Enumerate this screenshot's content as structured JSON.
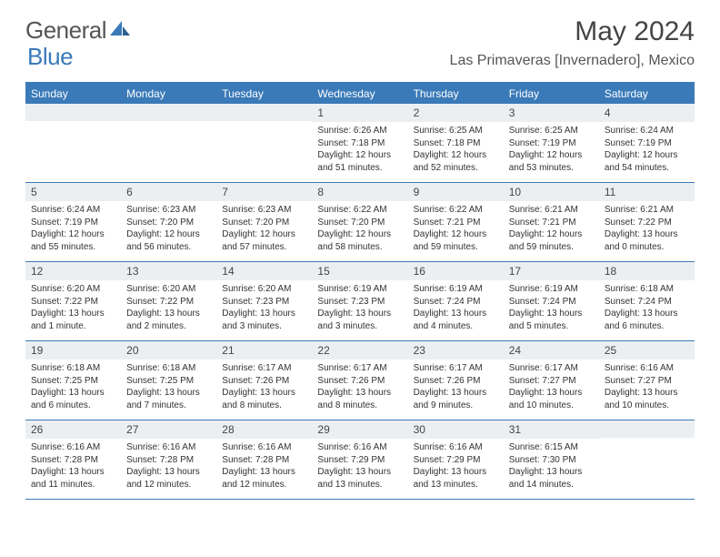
{
  "logo": {
    "text1": "General",
    "text2": "Blue"
  },
  "title": "May 2024",
  "location": "Las Primaveras [Invernadero], Mexico",
  "colors": {
    "header_bg": "#3a7ab8",
    "header_text": "#ffffff",
    "daynum_bg": "#eceff1",
    "text": "#333333",
    "border": "#3a7ab8",
    "logo_gray": "#555555",
    "logo_blue": "#3a7ab8",
    "background": "#ffffff"
  },
  "typography": {
    "title_fontsize": 30,
    "location_fontsize": 16,
    "dayheader_fontsize": 12,
    "daynum_fontsize": 12,
    "info_fontsize": 10
  },
  "day_names": [
    "Sunday",
    "Monday",
    "Tuesday",
    "Wednesday",
    "Thursday",
    "Friday",
    "Saturday"
  ],
  "weeks": [
    [
      {
        "n": "",
        "sr": "",
        "ss": "",
        "dl": ""
      },
      {
        "n": "",
        "sr": "",
        "ss": "",
        "dl": ""
      },
      {
        "n": "",
        "sr": "",
        "ss": "",
        "dl": ""
      },
      {
        "n": "1",
        "sr": "Sunrise: 6:26 AM",
        "ss": "Sunset: 7:18 PM",
        "dl": "Daylight: 12 hours and 51 minutes."
      },
      {
        "n": "2",
        "sr": "Sunrise: 6:25 AM",
        "ss": "Sunset: 7:18 PM",
        "dl": "Daylight: 12 hours and 52 minutes."
      },
      {
        "n": "3",
        "sr": "Sunrise: 6:25 AM",
        "ss": "Sunset: 7:19 PM",
        "dl": "Daylight: 12 hours and 53 minutes."
      },
      {
        "n": "4",
        "sr": "Sunrise: 6:24 AM",
        "ss": "Sunset: 7:19 PM",
        "dl": "Daylight: 12 hours and 54 minutes."
      }
    ],
    [
      {
        "n": "5",
        "sr": "Sunrise: 6:24 AM",
        "ss": "Sunset: 7:19 PM",
        "dl": "Daylight: 12 hours and 55 minutes."
      },
      {
        "n": "6",
        "sr": "Sunrise: 6:23 AM",
        "ss": "Sunset: 7:20 PM",
        "dl": "Daylight: 12 hours and 56 minutes."
      },
      {
        "n": "7",
        "sr": "Sunrise: 6:23 AM",
        "ss": "Sunset: 7:20 PM",
        "dl": "Daylight: 12 hours and 57 minutes."
      },
      {
        "n": "8",
        "sr": "Sunrise: 6:22 AM",
        "ss": "Sunset: 7:20 PM",
        "dl": "Daylight: 12 hours and 58 minutes."
      },
      {
        "n": "9",
        "sr": "Sunrise: 6:22 AM",
        "ss": "Sunset: 7:21 PM",
        "dl": "Daylight: 12 hours and 59 minutes."
      },
      {
        "n": "10",
        "sr": "Sunrise: 6:21 AM",
        "ss": "Sunset: 7:21 PM",
        "dl": "Daylight: 12 hours and 59 minutes."
      },
      {
        "n": "11",
        "sr": "Sunrise: 6:21 AM",
        "ss": "Sunset: 7:22 PM",
        "dl": "Daylight: 13 hours and 0 minutes."
      }
    ],
    [
      {
        "n": "12",
        "sr": "Sunrise: 6:20 AM",
        "ss": "Sunset: 7:22 PM",
        "dl": "Daylight: 13 hours and 1 minute."
      },
      {
        "n": "13",
        "sr": "Sunrise: 6:20 AM",
        "ss": "Sunset: 7:22 PM",
        "dl": "Daylight: 13 hours and 2 minutes."
      },
      {
        "n": "14",
        "sr": "Sunrise: 6:20 AM",
        "ss": "Sunset: 7:23 PM",
        "dl": "Daylight: 13 hours and 3 minutes."
      },
      {
        "n": "15",
        "sr": "Sunrise: 6:19 AM",
        "ss": "Sunset: 7:23 PM",
        "dl": "Daylight: 13 hours and 3 minutes."
      },
      {
        "n": "16",
        "sr": "Sunrise: 6:19 AM",
        "ss": "Sunset: 7:24 PM",
        "dl": "Daylight: 13 hours and 4 minutes."
      },
      {
        "n": "17",
        "sr": "Sunrise: 6:19 AM",
        "ss": "Sunset: 7:24 PM",
        "dl": "Daylight: 13 hours and 5 minutes."
      },
      {
        "n": "18",
        "sr": "Sunrise: 6:18 AM",
        "ss": "Sunset: 7:24 PM",
        "dl": "Daylight: 13 hours and 6 minutes."
      }
    ],
    [
      {
        "n": "19",
        "sr": "Sunrise: 6:18 AM",
        "ss": "Sunset: 7:25 PM",
        "dl": "Daylight: 13 hours and 6 minutes."
      },
      {
        "n": "20",
        "sr": "Sunrise: 6:18 AM",
        "ss": "Sunset: 7:25 PM",
        "dl": "Daylight: 13 hours and 7 minutes."
      },
      {
        "n": "21",
        "sr": "Sunrise: 6:17 AM",
        "ss": "Sunset: 7:26 PM",
        "dl": "Daylight: 13 hours and 8 minutes."
      },
      {
        "n": "22",
        "sr": "Sunrise: 6:17 AM",
        "ss": "Sunset: 7:26 PM",
        "dl": "Daylight: 13 hours and 8 minutes."
      },
      {
        "n": "23",
        "sr": "Sunrise: 6:17 AM",
        "ss": "Sunset: 7:26 PM",
        "dl": "Daylight: 13 hours and 9 minutes."
      },
      {
        "n": "24",
        "sr": "Sunrise: 6:17 AM",
        "ss": "Sunset: 7:27 PM",
        "dl": "Daylight: 13 hours and 10 minutes."
      },
      {
        "n": "25",
        "sr": "Sunrise: 6:16 AM",
        "ss": "Sunset: 7:27 PM",
        "dl": "Daylight: 13 hours and 10 minutes."
      }
    ],
    [
      {
        "n": "26",
        "sr": "Sunrise: 6:16 AM",
        "ss": "Sunset: 7:28 PM",
        "dl": "Daylight: 13 hours and 11 minutes."
      },
      {
        "n": "27",
        "sr": "Sunrise: 6:16 AM",
        "ss": "Sunset: 7:28 PM",
        "dl": "Daylight: 13 hours and 12 minutes."
      },
      {
        "n": "28",
        "sr": "Sunrise: 6:16 AM",
        "ss": "Sunset: 7:28 PM",
        "dl": "Daylight: 13 hours and 12 minutes."
      },
      {
        "n": "29",
        "sr": "Sunrise: 6:16 AM",
        "ss": "Sunset: 7:29 PM",
        "dl": "Daylight: 13 hours and 13 minutes."
      },
      {
        "n": "30",
        "sr": "Sunrise: 6:16 AM",
        "ss": "Sunset: 7:29 PM",
        "dl": "Daylight: 13 hours and 13 minutes."
      },
      {
        "n": "31",
        "sr": "Sunrise: 6:15 AM",
        "ss": "Sunset: 7:30 PM",
        "dl": "Daylight: 13 hours and 14 minutes."
      },
      {
        "n": "",
        "sr": "",
        "ss": "",
        "dl": ""
      }
    ]
  ]
}
